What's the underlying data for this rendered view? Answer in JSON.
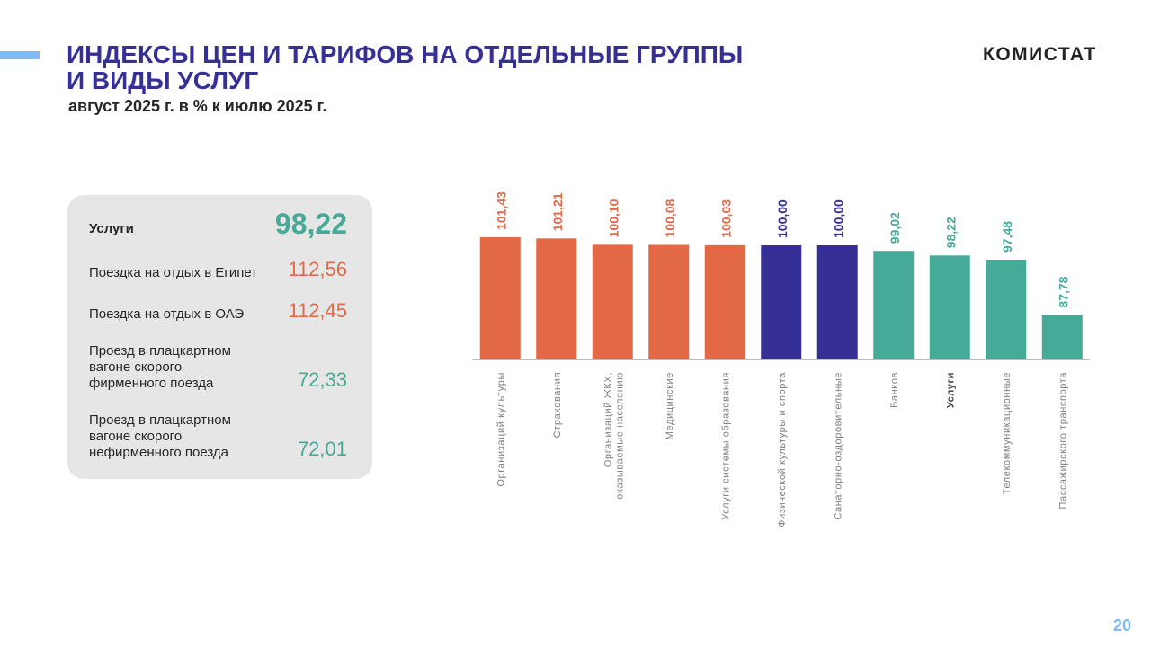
{
  "header": {
    "title_line1": "ИНДЕКСЫ ЦЕН И ТАРИФОВ НА ОТДЕЛЬНЫЕ ГРУППЫ",
    "title_line2": "И ВИДЫ УСЛУГ",
    "subtitle": "август 2025 г. в % к июлю 2025 г.",
    "logo": "КОМИСТАТ",
    "page_number": "20"
  },
  "colors": {
    "up": "#E36846",
    "neutral": "#363096",
    "down": "#45AA98",
    "title": "#363096"
  },
  "panel": {
    "main": {
      "label": "Услуги",
      "value": "98,22"
    },
    "items": [
      {
        "label": "Поездка на отдых в Египет",
        "value": "112,56",
        "color": "#E36846"
      },
      {
        "label": "Поездка на отдых в ОАЭ",
        "value": "112,45",
        "color": "#E36846"
      },
      {
        "label": "Проезд в плацкартном вагоне скорого фирменного поезда",
        "value": "72,33",
        "color": "#45AA98"
      },
      {
        "label": "Проезд в плацкартном вагоне скорого нефирменного поезда",
        "value": "72,01",
        "color": "#45AA98"
      }
    ]
  },
  "chart_data": {
    "type": "bar",
    "ylim": [
      80,
      102
    ],
    "grid": false,
    "categories": [
      "Организаций культуры",
      "Страхования",
      "Организаций ЖКХ, оказываемые населению",
      "Медицинские",
      "Услуги системы образования",
      "Физической культуры и спорта",
      "Санаторно-оздоровительные",
      "Банков",
      "Услуги",
      "Телекоммуникационные",
      "Пассажирского транспорта"
    ],
    "values": [
      101.43,
      101.21,
      100.1,
      100.08,
      100.03,
      100.0,
      100.0,
      99.02,
      98.22,
      97.48,
      87.78
    ],
    "labels": [
      "101,43",
      "101,21",
      "100,10",
      "100,08",
      "100,03",
      "100,00",
      "100,00",
      "99,02",
      "98,22",
      "97,48",
      "87,78"
    ],
    "bar_colors": [
      "#E36846",
      "#E36846",
      "#E36846",
      "#E36846",
      "#E36846",
      "#363096",
      "#363096",
      "#45AA98",
      "#45AA98",
      "#45AA98",
      "#45AA98"
    ],
    "highlight_category": "Услуги"
  }
}
